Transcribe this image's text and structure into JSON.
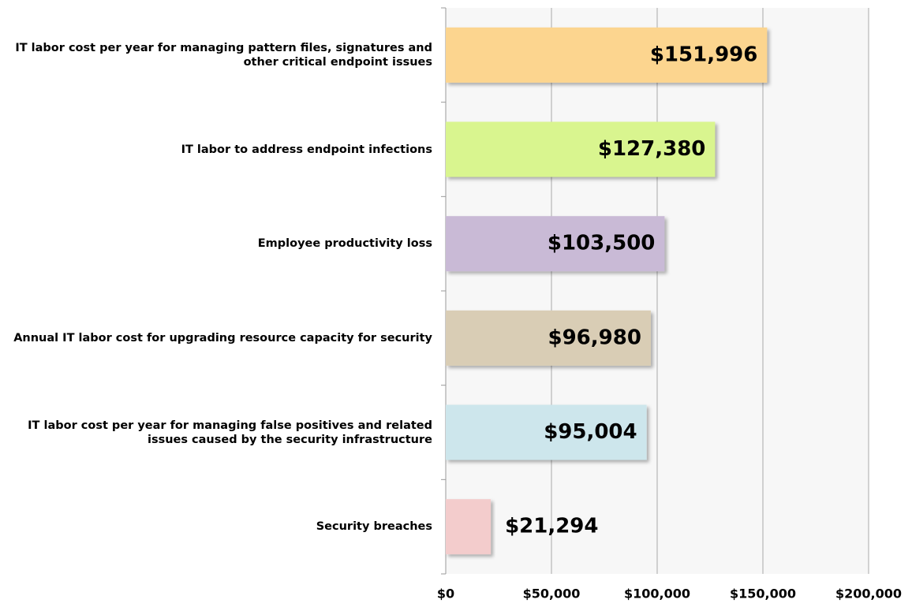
{
  "chart_data": {
    "type": "bar",
    "orientation": "horizontal",
    "categories": [
      "IT labor cost per year for managing pattern files, signatures and other critical endpoint issues",
      "IT labor to address endpoint infections",
      "Employee productivity loss",
      "Annual IT labor cost for upgrading resource capacity for security",
      "IT labor cost per year for managing false positives and related issues caused by the security infrastructure",
      "Security breaches"
    ],
    "values": [
      151996,
      127380,
      103500,
      96980,
      95004,
      21294
    ],
    "value_labels": [
      "$151,996",
      "$127,380",
      "$103,500",
      "$96,980",
      "$95,004",
      "$21,294"
    ],
    "colors": [
      "#fcd58f",
      "#d9f58f",
      "#c9bad6",
      "#d9cdb5",
      "#cde6ec",
      "#f3cccc"
    ],
    "xlim": [
      0,
      200000
    ],
    "xticks": [
      {
        "value": 0,
        "label": "$0"
      },
      {
        "value": 50000,
        "label": "$50,000"
      },
      {
        "value": 100000,
        "label": "$100,000"
      },
      {
        "value": 150000,
        "label": "$150,000"
      },
      {
        "value": 200000,
        "label": "$200,000"
      }
    ],
    "grid": true
  }
}
